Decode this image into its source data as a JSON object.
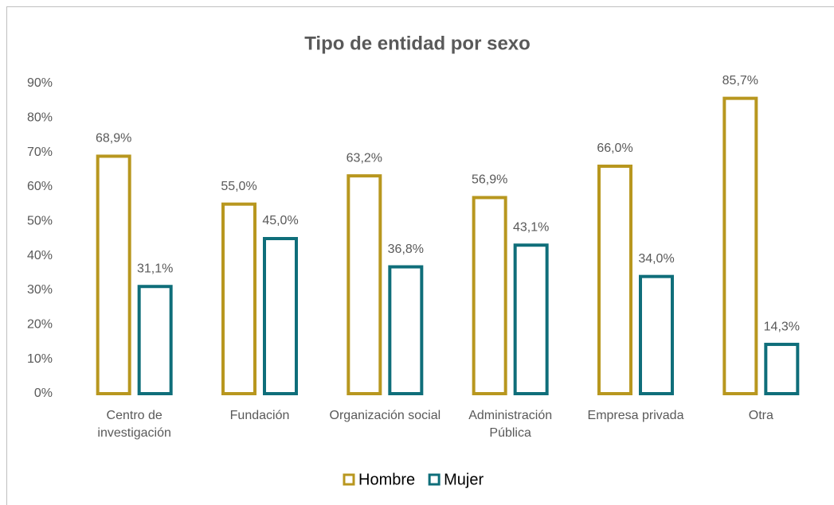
{
  "chart_data": {
    "type": "bar",
    "title": "Tipo de entidad por sexo",
    "categories": [
      "Centro de investigación",
      "Fundación",
      "Organización social",
      "Administración Pública",
      "Empresa privada",
      "Otra"
    ],
    "series": [
      {
        "name": "Hombre",
        "color": "#b8971f",
        "values": [
          68.9,
          55.0,
          63.2,
          56.9,
          66.0,
          85.7
        ],
        "value_labels": [
          "68,9%",
          "55,0%",
          "63,2%",
          "56,9%",
          "66,0%",
          "85,7%"
        ]
      },
      {
        "name": "Mujer",
        "color": "#0f6e7a",
        "values": [
          31.1,
          45.0,
          36.8,
          43.1,
          34.0,
          14.3
        ],
        "value_labels": [
          "31,1%",
          "45,0%",
          "36,8%",
          "43,1%",
          "34,0%",
          "14,3%"
        ]
      }
    ],
    "ylim": [
      0,
      90
    ],
    "yticks": [
      {
        "value": 0,
        "label": "0%"
      },
      {
        "value": 10,
        "label": "10%"
      },
      {
        "value": 20,
        "label": "20%"
      },
      {
        "value": 30,
        "label": "30%"
      },
      {
        "value": 40,
        "label": "40%"
      },
      {
        "value": 50,
        "label": "50%"
      },
      {
        "value": 60,
        "label": "60%"
      },
      {
        "value": 70,
        "label": "70%"
      },
      {
        "value": 80,
        "label": "80%"
      },
      {
        "value": 90,
        "label": "90%"
      }
    ],
    "grid": false,
    "legend": "bottom"
  }
}
